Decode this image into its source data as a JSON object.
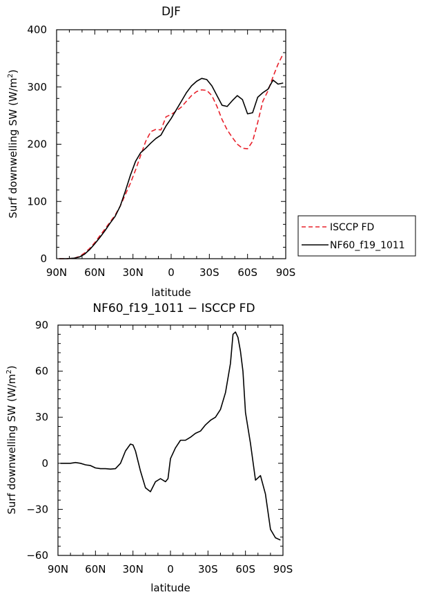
{
  "chart_data": [
    {
      "type": "line",
      "title": "DJF",
      "xlabel": "latitude",
      "ylabel": "Surf downwelling SW (W/m²)",
      "ylabel_parts": {
        "main": "Surf downwelling SW (W/m",
        "sup": "2",
        "close": ")"
      },
      "x_tick_labels": [
        "90N",
        "60N",
        "30N",
        "0",
        "30S",
        "60S",
        "90S"
      ],
      "x_tick_values": [
        -90,
        -60,
        -30,
        0,
        30,
        60,
        90
      ],
      "y_tick_labels": [
        "0",
        "100",
        "200",
        "300",
        "400"
      ],
      "y_tick_values": [
        0,
        100,
        200,
        300,
        400
      ],
      "xlim": [
        -90,
        90
      ],
      "ylim": [
        0,
        400
      ],
      "legend_position": "right",
      "series": [
        {
          "name": "ISCCP FD",
          "color": "#e8202a",
          "dash": true,
          "x": [
            -88,
            -82,
            -76,
            -72,
            -68,
            -64,
            -60,
            -56,
            -52,
            -48,
            -44,
            -40,
            -36,
            -32,
            -28,
            -24,
            -20,
            -16,
            -12,
            -8,
            -4,
            0,
            4,
            8,
            12,
            16,
            20,
            24,
            28,
            32,
            36,
            40,
            44,
            48,
            52,
            56,
            60,
            64,
            68,
            72,
            76,
            80,
            84,
            88
          ],
          "values": [
            0,
            0,
            1,
            4,
            10,
            18,
            28,
            40,
            52,
            64,
            76,
            92,
            112,
            132,
            155,
            180,
            205,
            222,
            226,
            225,
            248,
            252,
            258,
            265,
            275,
            285,
            292,
            295,
            294,
            285,
            266,
            243,
            225,
            212,
            200,
            193,
            192,
            205,
            238,
            275,
            293,
            318,
            340,
            358
          ]
        },
        {
          "name": "NF60_f19_1011",
          "color": "#000000",
          "dash": false,
          "x": [
            -88,
            -82,
            -76,
            -72,
            -68,
            -64,
            -60,
            -56,
            -52,
            -48,
            -44,
            -40,
            -36,
            -32,
            -28,
            -24,
            -20,
            -16,
            -12,
            -8,
            -4,
            0,
            4,
            8,
            12,
            16,
            20,
            24,
            28,
            32,
            36,
            40,
            44,
            48,
            52,
            56,
            60,
            64,
            68,
            72,
            76,
            80,
            84,
            88
          ],
          "values": [
            0,
            0,
            1,
            3,
            8,
            16,
            26,
            37,
            49,
            62,
            74,
            92,
            118,
            146,
            170,
            185,
            193,
            202,
            210,
            216,
            232,
            245,
            260,
            275,
            290,
            302,
            310,
            315,
            313,
            302,
            285,
            268,
            266,
            276,
            285,
            278,
            253,
            255,
            282,
            290,
            296,
            312,
            305,
            307
          ]
        }
      ]
    },
    {
      "type": "line",
      "title": "NF60_f19_1011 − ISCCP FD",
      "xlabel": "latitude",
      "ylabel": "Surf downwelling SW (W/m²)",
      "ylabel_parts": {
        "main": "Surf downwelling SW (W/m",
        "sup": "2",
        "close": ")"
      },
      "x_tick_labels": [
        "90N",
        "60N",
        "30N",
        "0",
        "30S",
        "60S",
        "90S"
      ],
      "x_tick_values": [
        -90,
        -60,
        -30,
        0,
        30,
        60,
        90
      ],
      "y_tick_labels": [
        "−60",
        "−30",
        "0",
        "30",
        "60",
        "90"
      ],
      "y_tick_values": [
        -60,
        -30,
        0,
        30,
        60,
        90
      ],
      "xlim": [
        -90,
        90
      ],
      "ylim": [
        -60,
        90
      ],
      "series": [
        {
          "color": "#000000",
          "dash": false,
          "x": [
            -88,
            -80,
            -76,
            -72,
            -68,
            -64,
            -60,
            -56,
            -52,
            -48,
            -44,
            -40,
            -36,
            -32,
            -30,
            -28,
            -24,
            -20,
            -16,
            -12,
            -8,
            -4,
            -2,
            0,
            4,
            8,
            12,
            16,
            20,
            24,
            28,
            32,
            36,
            40,
            44,
            48,
            50,
            52,
            54,
            56,
            58,
            60,
            64,
            68,
            72,
            76,
            80,
            84,
            88
          ],
          "values": [
            0,
            0,
            0.5,
            0,
            -1,
            -1.5,
            -3,
            -3.5,
            -3.5,
            -3.8,
            -3.5,
            0,
            8,
            12.5,
            12,
            8,
            -5,
            -16,
            -18.5,
            -12,
            -10,
            -12,
            -10,
            3,
            10,
            15,
            15,
            17,
            19.5,
            21,
            25,
            28,
            30,
            35,
            46,
            65,
            84,
            85.5,
            82,
            73,
            60,
            33,
            13,
            -11,
            -8,
            -20,
            -43,
            -48.5,
            -50
          ]
        }
      ]
    }
  ]
}
